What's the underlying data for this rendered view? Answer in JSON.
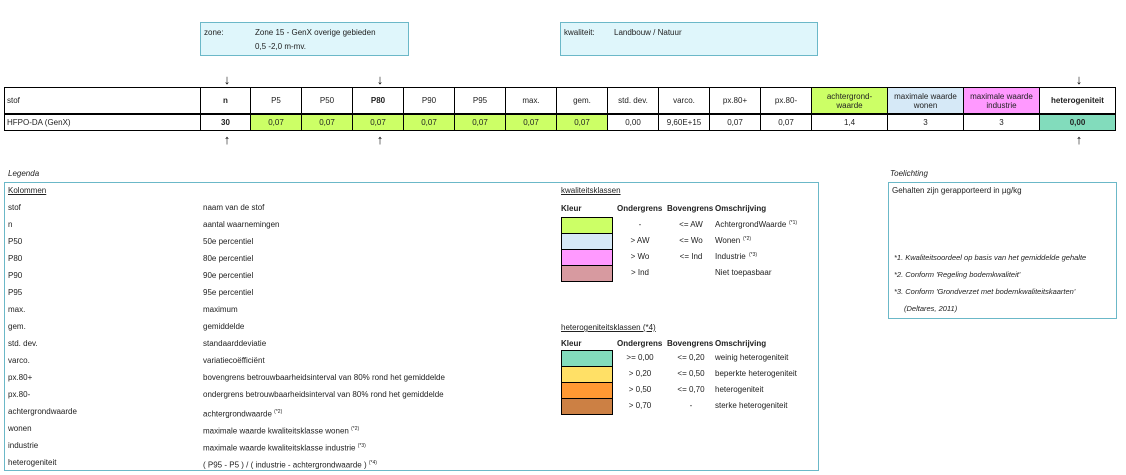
{
  "zone_box": {
    "label": "zone:",
    "value": "Zone 15 - GenX overige gebieden",
    "depth": "0,5 -2,0 m-mv."
  },
  "quality_box": {
    "label": "kwaliteit:",
    "value": "Landbouw / Natuur"
  },
  "arrows": {
    "down": "↓",
    "up": "↑"
  },
  "table": {
    "headers": [
      "stof",
      "n",
      "P5",
      "P50",
      "P80",
      "P90",
      "P95",
      "max.",
      "gem.",
      "std. dev.",
      "varco.",
      "px.80+",
      "px.80-",
      "achtergrond-\nwaarde",
      "maximale waarde\nwonen",
      "maximale waarde\nindustrie",
      "heterogeniteit"
    ],
    "row": [
      "HFPO-DA (GenX)",
      "30",
      "0,07",
      "0,07",
      "0,07",
      "0,07",
      "0,07",
      "0,07",
      "0,07",
      "0,00",
      "9,60E+15",
      "0,07",
      "0,07",
      "1,4",
      "3",
      "3",
      "0,00"
    ]
  },
  "legend": {
    "title": "Legenda",
    "columns_title": "Kolommen",
    "items": [
      {
        "key": "stof",
        "desc": "naam van de stof",
        "note": ""
      },
      {
        "key": "n",
        "desc": "aantal waarnemingen",
        "note": ""
      },
      {
        "key": "P50",
        "desc": "50e percentiel",
        "note": ""
      },
      {
        "key": "P80",
        "desc": "80e percentiel",
        "note": ""
      },
      {
        "key": "P90",
        "desc": "90e percentiel",
        "note": ""
      },
      {
        "key": "P95",
        "desc": "95e percentiel",
        "note": ""
      },
      {
        "key": "max.",
        "desc": "maximum",
        "note": ""
      },
      {
        "key": "gem.",
        "desc": "gemiddelde",
        "note": ""
      },
      {
        "key": "std. dev.",
        "desc": "standaarddeviatie",
        "note": ""
      },
      {
        "key": "varco.",
        "desc": "variatiecoëfficiënt",
        "note": ""
      },
      {
        "key": "px.80+",
        "desc": "bovengrens betrouwbaarheidsinterval van 80% rond het gemiddelde",
        "note": ""
      },
      {
        "key": "px.80-",
        "desc": "ondergrens betrouwbaarheidsinterval van 80% rond het gemiddelde",
        "note": ""
      },
      {
        "key": "achtergrondwaarde",
        "desc": "achtergrondwaarde",
        "note": "(*2)"
      },
      {
        "key": "wonen",
        "desc": "maximale waarde kwaliteitsklasse wonen",
        "note": "(*2)"
      },
      {
        "key": "industrie",
        "desc": "maximale waarde kwaliteitsklasse industrie",
        "note": "(*3)"
      },
      {
        "key": "heterogeniteit",
        "desc": "( P95 - P5 ) / ( industrie - achtergrondwaarde )",
        "note": "(*4)"
      }
    ],
    "quality_classes": {
      "title": "kwaliteitsklassen",
      "headers": [
        "Kleur",
        "Ondergrens",
        "Bovengrens",
        "Omschrijving"
      ],
      "rows": [
        {
          "color": "#ccff66",
          "lower": "-",
          "upper": "<= AW",
          "desc": "AchtergrondWaarde",
          "note": "(*1)"
        },
        {
          "color": "#d6e9f7",
          "lower": "> AW",
          "upper": "<= Wo",
          "desc": "Wonen",
          "note": "(*2)"
        },
        {
          "color": "#ff99ff",
          "lower": "> Wo",
          "upper": "<= Ind",
          "desc": "Industrie",
          "note": "(*3)"
        },
        {
          "color": "#d79aa0",
          "lower": "> Ind",
          "upper": "",
          "desc": "Niet toepasbaar",
          "note": ""
        }
      ]
    },
    "hetero_classes": {
      "title": "heterogeniteitsklassen (*4)",
      "headers": [
        "Kleur",
        "Ondergrens",
        "Bovengrens",
        "Omschrijving"
      ],
      "rows": [
        {
          "color": "#82dcbc",
          "lower": ">= 0,00",
          "upper": "<= 0,20",
          "desc": "weinig heterogeniteit"
        },
        {
          "color": "#ffe066",
          "lower": "> 0,20",
          "upper": "<= 0,50",
          "desc": "beperkte heterogeniteit"
        },
        {
          "color": "#ff9933",
          "lower": "> 0,50",
          "upper": "<= 0,70",
          "desc": "heterogeniteit"
        },
        {
          "color": "#cc8044",
          "lower": "> 0,70",
          "upper": "-",
          "desc": "sterke heterogeniteit"
        }
      ]
    }
  },
  "toelichting": {
    "title": "Toelichting",
    "text": "Gehalten zijn gerapporteerd in µg/kg",
    "notes": [
      "*1. Kwaliteitsoordeel op basis van het gemiddelde  gehalte",
      "*2. Conform 'Regeling bodemkwaliteit'",
      "*3. Conform 'Grondverzet met bodemkwaliteitskaarten'",
      "(Deltares, 2011)"
    ]
  }
}
